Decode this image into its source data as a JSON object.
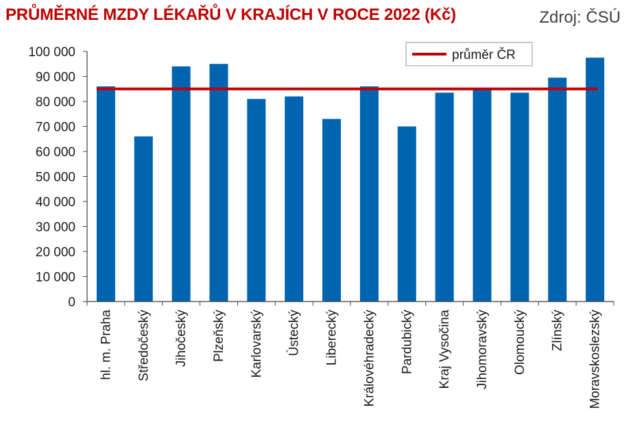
{
  "title": "PRŮMĚRNÉ MZDY LÉKAŘŮ V KRAJÍCH V ROCE 2022 (Kč)",
  "source": "Zdroj: ČSÚ",
  "colors": {
    "title": "#c00000",
    "bar": "#0064b0",
    "average_line": "#c00000",
    "axis": "#404040"
  },
  "chart_data": {
    "type": "bar",
    "categories": [
      "hl. m. Praha",
      "Středočeský",
      "Jihočeský",
      "Plzeňský",
      "Karlovarský",
      "Ústecký",
      "Liberecký",
      "Královéhradecký",
      "Pardubický",
      "Kraj Vysočina",
      "Jihomoravský",
      "Olomoucký",
      "Zlínský",
      "Moravskoslezský"
    ],
    "values": [
      86000,
      66000,
      94000,
      95000,
      81000,
      82000,
      73000,
      86000,
      70000,
      83500,
      85000,
      83500,
      89500,
      97500
    ],
    "average": {
      "name": "průměr ČR",
      "value": 85000
    },
    "ylim": [
      0,
      100000
    ],
    "yticks": [
      0,
      10000,
      20000,
      30000,
      40000,
      50000,
      60000,
      70000,
      80000,
      90000,
      100000
    ],
    "ytick_labels": [
      "0",
      "10 000",
      "20 000",
      "30 000",
      "40 000",
      "50 000",
      "60 000",
      "70 000",
      "80 000",
      "90 000",
      "100 000"
    ],
    "legend": {
      "entries": [
        "průměr ČR"
      ],
      "placement": "top-right"
    },
    "grid": false
  }
}
